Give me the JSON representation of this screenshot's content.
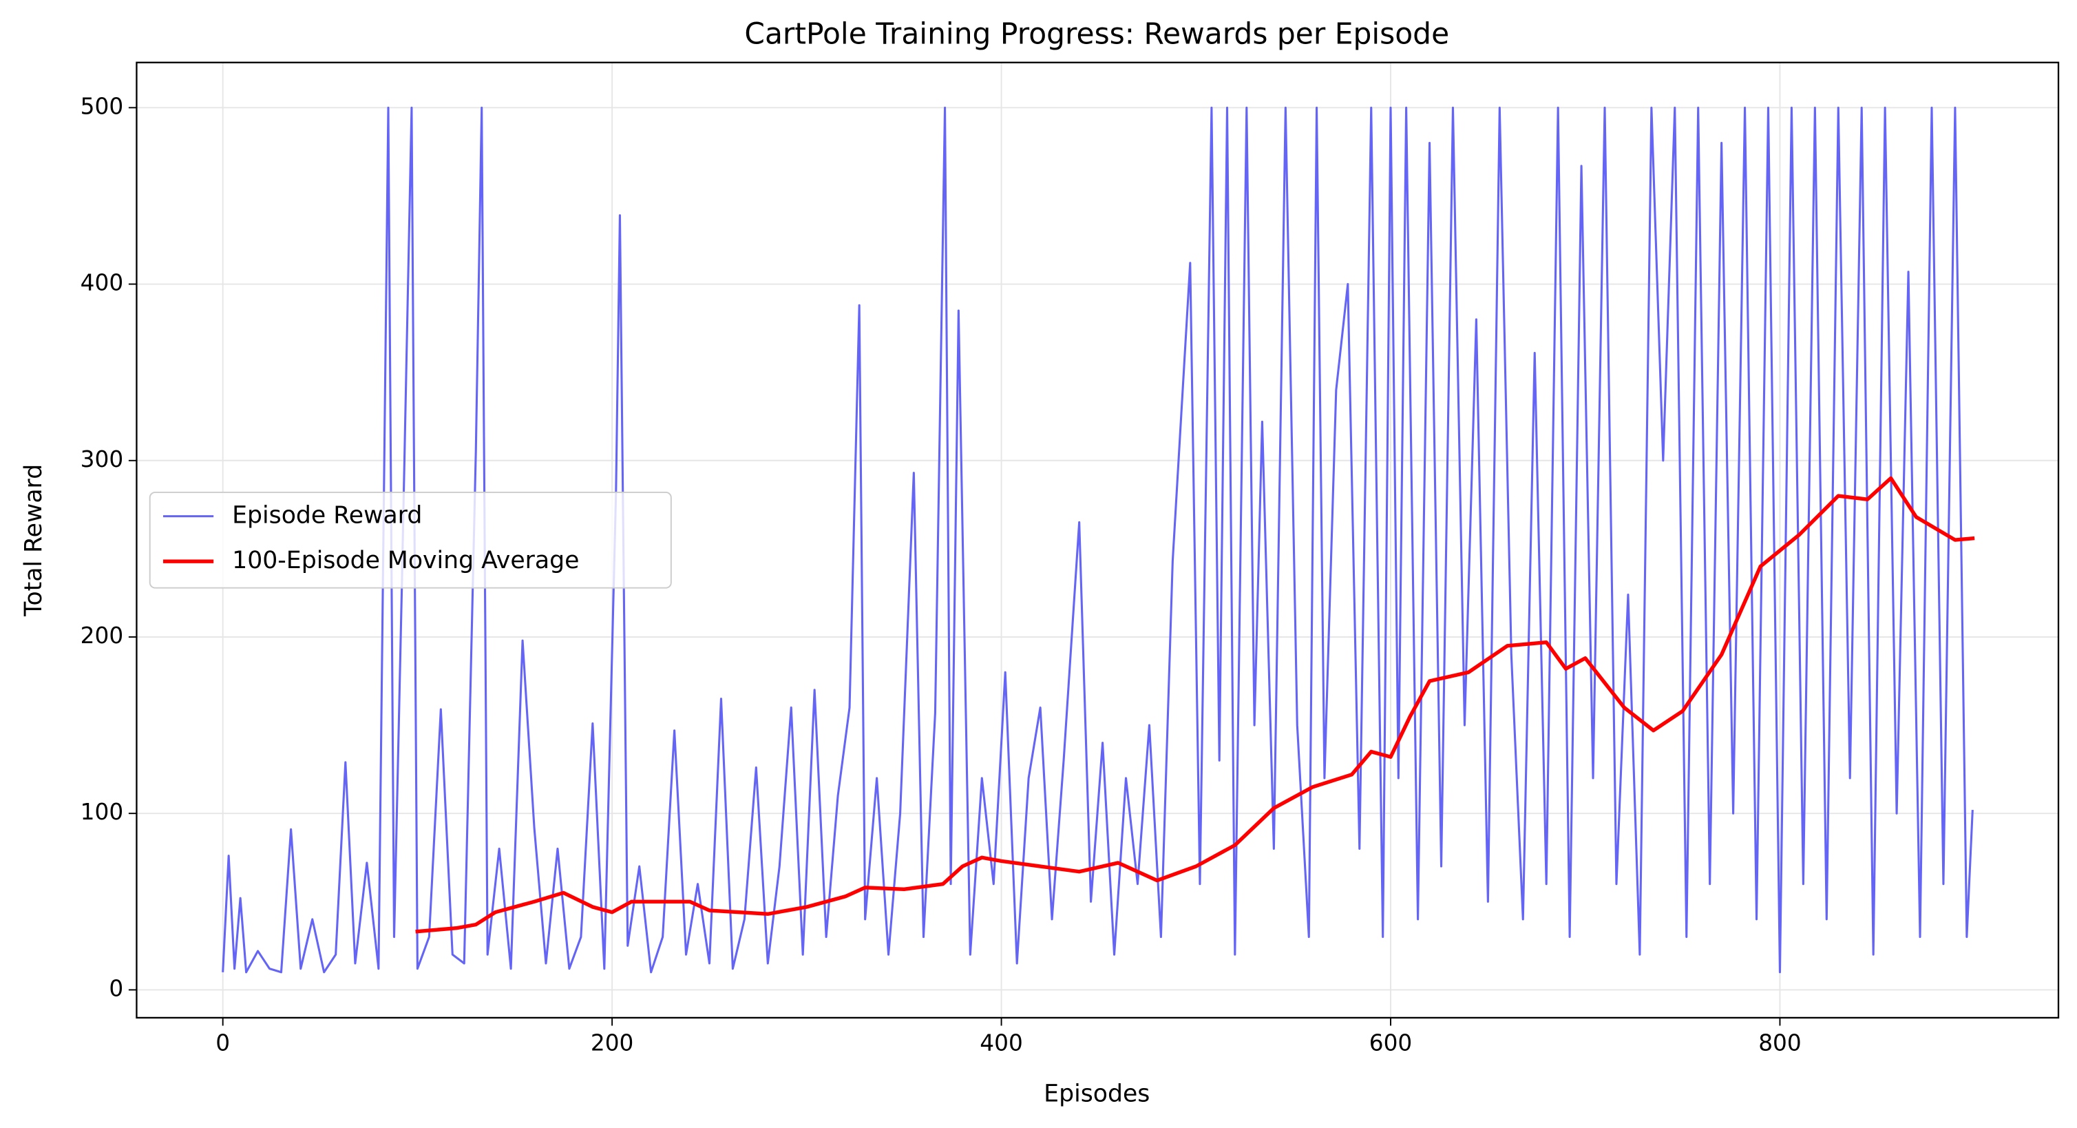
{
  "chart_data": {
    "type": "line",
    "title": "CartPole Training Progress: Rewards per Episode",
    "x_label": "Episodes",
    "y_label": "Total Reward",
    "xlim": [
      -44.3,
      943.1
    ],
    "ylim": [
      -15.8,
      525.6
    ],
    "xticks": [
      0,
      200,
      400,
      600,
      800
    ],
    "yticks": [
      0,
      100,
      200,
      300,
      400,
      500
    ],
    "grid": true,
    "legend": "center left",
    "series": [
      {
        "name": "Episode Reward",
        "color": "#6464f5",
        "width": 1.6,
        "x": [
          0,
          3,
          6,
          9,
          12,
          18,
          24,
          30,
          35,
          40,
          46,
          52,
          58,
          63,
          68,
          74,
          80,
          85,
          88,
          92,
          97,
          100,
          106,
          112,
          118,
          124,
          130,
          133,
          136,
          142,
          148,
          154,
          160,
          166,
          172,
          178,
          184,
          190,
          196,
          202,
          204,
          208,
          214,
          220,
          226,
          232,
          238,
          244,
          250,
          256,
          262,
          268,
          274,
          280,
          286,
          292,
          298,
          304,
          310,
          316,
          322,
          327,
          330,
          336,
          342,
          348,
          355,
          360,
          366,
          371,
          374,
          378,
          384,
          390,
          396,
          402,
          408,
          414,
          420,
          426,
          432,
          440,
          446,
          452,
          458,
          464,
          470,
          476,
          482,
          488,
          497,
          502,
          508,
          512,
          516,
          520,
          526,
          530,
          534,
          540,
          546,
          552,
          558,
          562,
          566,
          572,
          578,
          584,
          590,
          596,
          600,
          604,
          608,
          614,
          620,
          626,
          632,
          638,
          644,
          650,
          656,
          662,
          668,
          674,
          680,
          686,
          692,
          698,
          704,
          710,
          716,
          722,
          728,
          734,
          740,
          746,
          752,
          758,
          764,
          770,
          776,
          782,
          788,
          794,
          800,
          806,
          812,
          818,
          824,
          830,
          836,
          842,
          848,
          854,
          860,
          866,
          872,
          878,
          884,
          890,
          896,
          899
        ],
        "values": [
          10,
          76,
          12,
          52,
          10,
          22,
          12,
          10,
          91,
          12,
          40,
          10,
          20,
          129,
          15,
          72,
          12,
          500,
          30,
          230,
          500,
          12,
          30,
          159,
          20,
          15,
          305,
          500,
          20,
          80,
          12,
          198,
          92,
          15,
          80,
          12,
          30,
          151,
          12,
          282,
          439,
          25,
          70,
          10,
          30,
          147,
          20,
          60,
          15,
          165,
          12,
          40,
          126,
          15,
          70,
          160,
          20,
          170,
          30,
          110,
          160,
          388,
          40,
          120,
          20,
          100,
          293,
          30,
          157,
          500,
          60,
          385,
          20,
          120,
          60,
          180,
          15,
          120,
          160,
          40,
          130,
          265,
          50,
          140,
          20,
          120,
          60,
          150,
          30,
          243,
          412,
          60,
          500,
          130,
          500,
          20,
          500,
          150,
          322,
          80,
          500,
          150,
          30,
          500,
          120,
          340,
          400,
          80,
          500,
          30,
          500,
          120,
          500,
          40,
          480,
          70,
          500,
          150,
          380,
          50,
          500,
          190,
          40,
          361,
          60,
          500,
          30,
          467,
          120,
          500,
          60,
          224,
          20,
          500,
          300,
          500,
          30,
          500,
          60,
          480,
          100,
          500,
          40,
          500,
          10,
          500,
          60,
          500,
          40,
          500,
          120,
          500,
          20,
          500,
          100,
          407,
          30,
          500,
          60,
          500,
          30,
          102
        ]
      },
      {
        "name": "100-Episode Moving Average",
        "color": "#ff0000",
        "width": 2.8,
        "x": [
          99,
          120,
          130,
          140,
          160,
          175,
          190,
          200,
          210,
          240,
          250,
          280,
          300,
          320,
          330,
          350,
          370,
          380,
          390,
          400,
          420,
          440,
          460,
          480,
          500,
          520,
          540,
          560,
          580,
          590,
          600,
          610,
          620,
          640,
          660,
          680,
          690,
          700,
          720,
          735,
          750,
          770,
          790,
          810,
          830,
          845,
          857,
          870,
          890,
          900
        ],
        "values": [
          33,
          35,
          37,
          44,
          50,
          55,
          47,
          44,
          50,
          50,
          45,
          43,
          47,
          53,
          58,
          57,
          60,
          70,
          75,
          73,
          70,
          67,
          72,
          62,
          70,
          82,
          103,
          115,
          122,
          135,
          132,
          155,
          175,
          180,
          195,
          197,
          182,
          188,
          160,
          147,
          158,
          190,
          240,
          258,
          280,
          278,
          290,
          268,
          255,
          256
        ]
      }
    ]
  }
}
